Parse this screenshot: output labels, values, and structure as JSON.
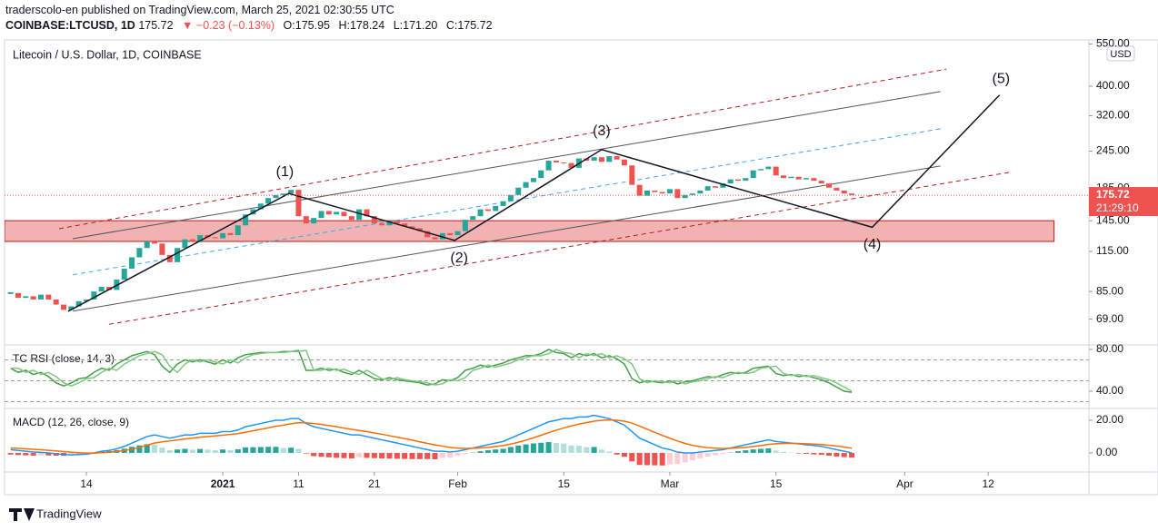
{
  "header": {
    "publisher": "traderscolo-en published on TradingView.com, March 25, 2021 02:30:55 UTC",
    "symbol": "COINBASE:LTCUSD, 1D",
    "last": "175.72",
    "change": "▼ −0.23 (−0.13%)",
    "ohlc": [
      "O:175.95",
      "H:178.24",
      "L:171.20",
      "C:175.72"
    ],
    "footer": "TradingView"
  },
  "chart_data": {
    "type": "candlestick",
    "title": "Litecoin / U.S. Dollar, 1D, COINBASE",
    "currency": "USD",
    "log_scale": true,
    "grid": false,
    "up_color": "#26a69a",
    "down_color": "#ef5350",
    "x": [
      0,
      1,
      2,
      3,
      4,
      5,
      6,
      7,
      8,
      9,
      10,
      11,
      12,
      13,
      14,
      15,
      16,
      17,
      18,
      19,
      20,
      21,
      22,
      23,
      24,
      25,
      26,
      27,
      28,
      29,
      30,
      31,
      32,
      33,
      34,
      35,
      36,
      37,
      38,
      39,
      40,
      41,
      42,
      43,
      44,
      45,
      46,
      47,
      48,
      49,
      50,
      51,
      52,
      53,
      54,
      55,
      56,
      57,
      58,
      59,
      60,
      61,
      62,
      63,
      64,
      65,
      66,
      67,
      68,
      69,
      70,
      71,
      72,
      73,
      74,
      75,
      76,
      77,
      78,
      79,
      80,
      81,
      82,
      83,
      84,
      85,
      86,
      87,
      88,
      89,
      90,
      91,
      92,
      93,
      94,
      95,
      96,
      97,
      98,
      99,
      100,
      101,
      102,
      103,
      104,
      105,
      106,
      107,
      108,
      109,
      110,
      111
    ],
    "close": [
      84,
      81,
      82,
      80,
      83,
      80,
      77,
      74,
      76,
      79,
      80,
      85,
      88,
      86,
      93,
      101,
      110,
      118,
      124,
      122,
      112,
      106,
      118,
      126,
      124,
      130,
      128,
      127,
      132,
      130,
      140,
      152,
      158,
      165,
      172,
      176,
      178,
      183,
      150,
      142,
      148,
      156,
      152,
      155,
      150,
      146,
      158,
      150,
      142,
      140,
      144,
      142,
      139,
      137,
      134,
      128,
      126,
      132,
      130,
      134,
      146,
      150,
      158,
      156,
      162,
      168,
      176,
      186,
      194,
      200,
      212,
      228,
      225,
      224,
      216,
      232,
      228,
      234,
      226,
      236,
      230,
      220,
      190,
      175,
      182,
      180,
      178,
      184,
      172,
      176,
      178,
      182,
      188,
      186,
      192,
      198,
      196,
      200,
      212,
      214,
      218,
      204,
      200,
      202,
      198,
      200,
      196,
      192,
      186,
      182,
      178,
      175.72
    ],
    "last_price": 175.72,
    "countdown": "21:29:10",
    "xlim": [
      -0.8,
      142.3
    ],
    "xticks": [
      {
        "value": 10,
        "label": "14"
      },
      {
        "value": 28,
        "label": "2021"
      },
      {
        "value": 38,
        "label": "11"
      },
      {
        "value": 48,
        "label": "21"
      },
      {
        "value": 59,
        "label": "Feb"
      },
      {
        "value": 73,
        "label": "15"
      },
      {
        "value": 87,
        "label": "Mar"
      },
      {
        "value": 101,
        "label": "15"
      },
      {
        "value": 118,
        "label": "Apr"
      },
      {
        "value": 129,
        "label": "12"
      }
    ],
    "ylim": [
      56.8,
      567
    ],
    "yticks": [
      {
        "value": 550,
        "label": "550.00"
      },
      {
        "value": 400,
        "label": "400.00"
      },
      {
        "value": 320,
        "label": "320.00"
      },
      {
        "value": 245,
        "label": "245.00"
      },
      {
        "value": 185,
        "label": "185.00"
      },
      {
        "value": 145,
        "label": "145.00"
      },
      {
        "value": 115,
        "label": "115.00"
      },
      {
        "value": 85,
        "label": "85.00"
      },
      {
        "value": 69,
        "label": "69.00"
      }
    ],
    "zone": {
      "x": [
        -0.8,
        137.7
      ],
      "y": [
        124,
        145
      ],
      "color": "#e57373"
    },
    "channels": [
      {
        "color": "#555555",
        "dashed": false,
        "x": [
          8.2,
          122.7
        ],
        "y": [
          126.6,
          384
        ]
      },
      {
        "color": "#555555",
        "dashed": false,
        "x": [
          8.2,
          122.7
        ],
        "y": [
          73.3,
          219
        ]
      },
      {
        "color": "#42a5f5",
        "dashed": true,
        "x": [
          8.2,
          122.7
        ],
        "y": [
          96.4,
          290
        ]
      },
      {
        "color": "#b71c1c",
        "dashed": true,
        "x": [
          6.4,
          123.5
        ],
        "y": [
          136.5,
          455
        ]
      },
      {
        "color": "#b71c1c",
        "dashed": true,
        "x": [
          13,
          131.9
        ],
        "y": [
          66.4,
          209
        ]
      }
    ],
    "wave_path": {
      "x": [
        7.6,
        36.7,
        58.6,
        78,
        113.7,
        130.5
      ],
      "y": [
        73.2,
        178,
        125,
        248,
        138,
        374
      ]
    },
    "wave_labels": [
      {
        "text": "(1)",
        "x": 36.2,
        "y": 209
      },
      {
        "text": "(2)",
        "x": 59.2,
        "y": 109
      },
      {
        "text": "(3)",
        "x": 78,
        "y": 284
      },
      {
        "text": "(4)",
        "x": 113.7,
        "y": 121
      },
      {
        "text": "(5)",
        "x": 130.7,
        "y": 422
      }
    ],
    "indicators": [
      {
        "name": "TC RSI (close, 14, 3)",
        "ylim": [
          23.5,
          84.3
        ],
        "yticks": [
          {
            "value": 80,
            "label": "80.00"
          },
          {
            "value": 40,
            "label": "40.00"
          }
        ],
        "levels": [
          70,
          50,
          30
        ],
        "series": [
          {
            "color": "#43a047",
            "values": [
              62,
              58,
              60,
              56,
              58,
              54,
              48,
              45,
              48,
              52,
              53,
              58,
              62,
              60,
              66,
              70,
              74,
              76,
              78,
              75,
              64,
              58,
              66,
              70,
              68,
              70,
              68,
              66,
              70,
              67,
              72,
              75,
              76,
              77,
              77,
              77,
              78,
              78,
              79,
              60,
              60,
              62,
              60,
              61,
              58,
              56,
              60,
              56,
              52,
              51,
              53,
              51,
              50,
              49,
              48,
              46,
              47,
              51,
              50,
              53,
              60,
              62,
              65,
              63,
              65,
              67,
              70,
              72,
              74,
              74,
              76,
              80,
              77,
              76,
              72,
              76,
              74,
              76,
              72,
              74,
              71,
              66,
              52,
              48,
              50,
              49,
              48,
              50,
              47,
              49,
              50,
              52,
              54,
              53,
              56,
              58,
              57,
              58,
              62,
              63,
              64,
              57,
              55,
              56,
              54,
              55,
              53,
              51,
              48,
              44,
              40,
              39
            ]
          },
          {
            "color": "#81c784",
            "values": [
              62,
              62,
              58,
              60,
              56,
              58,
              54,
              48,
              45,
              48,
              52,
              53,
              58,
              62,
              60,
              66,
              70,
              74,
              76,
              78,
              75,
              64,
              58,
              66,
              70,
              68,
              70,
              68,
              66,
              70,
              67,
              72,
              75,
              76,
              77,
              77,
              77,
              78,
              78,
              79,
              60,
              60,
              62,
              60,
              61,
              58,
              56,
              60,
              56,
              52,
              51,
              53,
              51,
              50,
              49,
              48,
              46,
              47,
              51,
              50,
              53,
              60,
              62,
              65,
              63,
              65,
              67,
              70,
              72,
              74,
              74,
              76,
              80,
              77,
              76,
              72,
              76,
              74,
              76,
              72,
              74,
              71,
              66,
              52,
              48,
              50,
              49,
              48,
              50,
              47,
              49,
              50,
              52,
              54,
              53,
              56,
              58,
              57,
              58,
              62,
              63,
              64,
              57,
              55,
              56,
              54,
              55,
              53,
              51,
              48,
              44,
              40
            ]
          }
        ]
      },
      {
        "name": "MACD (12, 26, close, 9)",
        "ylim": [
          -11.7,
          27.2
        ],
        "yticks": [
          {
            "value": 20,
            "label": "20.00"
          },
          {
            "value": 0,
            "label": "0.00"
          }
        ],
        "histogram": {
          "up_color": "#26a69a",
          "up_fade": "#b2dfdb",
          "down_color": "#ef5350",
          "down_fade": "#ffcdd2",
          "values": [
            -1,
            -1.3,
            -1.5,
            -1.7,
            -1.6,
            -1.6,
            -1.7,
            -1.8,
            -1.6,
            -1.1,
            -0.7,
            0.1,
            0.9,
            1.1,
            1.7,
            2.6,
            3.7,
            4.6,
            5.3,
            5,
            3.2,
            1.7,
            2.1,
            2.5,
            2,
            2.4,
            2,
            1.6,
            2.1,
            1.7,
            2.2,
            3.4,
            3.5,
            3.6,
            3.7,
            3.7,
            3,
            3.2,
            2.5,
            -0.4,
            -2,
            -2.4,
            -2.7,
            -3,
            -3.2,
            -3.4,
            -2.7,
            -3,
            -3.2,
            -3.4,
            -3.5,
            -3.6,
            -3.7,
            -3.8,
            -3.8,
            -3.8,
            -3.9,
            -3.1,
            -2.9,
            -1.9,
            -0.7,
            0.2,
            1,
            1.6,
            2.1,
            2.5,
            3.6,
            4.5,
            5.2,
            5.8,
            6.2,
            6.6,
            6.1,
            5.7,
            4.5,
            4.4,
            3.5,
            3.6,
            2,
            0.8,
            -1,
            -2.4,
            -5.2,
            -7.4,
            -7.5,
            -7.6,
            -7.7,
            -7,
            -6.8,
            -5.8,
            -4.6,
            -3.3,
            -2.2,
            -1.4,
            -0.7,
            0.2,
            1,
            1.6,
            2.1,
            2.5,
            2.8,
            1.4,
            0.7,
            0.2,
            -0.3,
            -0.6,
            -0.9,
            -1.1,
            -1.7,
            -2.2,
            -2.6,
            -2.9
          ]
        },
        "series": [
          {
            "color": "#2196f3",
            "values": [
              2,
              1.5,
              1,
              0.5,
              0.3,
              0,
              -0.5,
              -1,
              -1.2,
              -1,
              -0.8,
              0,
              1,
              1.5,
              2.5,
              4,
              6,
              8,
              10,
              11,
              10,
              9,
              10,
              11,
              11,
              12,
              12,
              12,
              13,
              13,
              14,
              16,
              17,
              18,
              19,
              20,
              20,
              21,
              21,
              18,
              16,
              15,
              14,
              13,
              12,
              11,
              11,
              10,
              9,
              8,
              7,
              6,
              5,
              4,
              3,
              2,
              1,
              1,
              0.5,
              1,
              2,
              3,
              4,
              5,
              6,
              7,
              9,
              11,
              13,
              15,
              17,
              19,
              20,
              21,
              21,
              22,
              22,
              23,
              22,
              21,
              19,
              17,
              13,
              9,
              7,
              5,
              3,
              2,
              0.5,
              0,
              0,
              0.5,
              1,
              1.5,
              2,
              3,
              4,
              5,
              6,
              7,
              8,
              7,
              6.5,
              6,
              5.5,
              5,
              4.5,
              4,
              3,
              2,
              1,
              0
            ]
          },
          {
            "color": "#ff6d00",
            "values": [
              3,
              2.8,
              2.5,
              2.2,
              1.9,
              1.6,
              1.2,
              0.8,
              0.4,
              0.1,
              -0.1,
              -0.1,
              0.1,
              0.4,
              0.8,
              1.4,
              2.3,
              3.4,
              4.7,
              6,
              6.8,
              7.3,
              7.9,
              8.5,
              9,
              9.6,
              10,
              10.4,
              10.9,
              11.3,
              11.8,
              12.6,
              13.5,
              14.4,
              15.3,
              16.3,
              17,
              17.8,
              18.5,
              18.4,
              18,
              17.4,
              16.7,
              16,
              15.2,
              14.4,
              13.7,
              13,
              12.2,
              11.4,
              10.5,
              9.6,
              8.7,
              7.8,
              6.8,
              5.8,
              4.9,
              4.1,
              3.4,
              2.9,
              2.7,
              2.8,
              3,
              3.4,
              3.9,
              4.5,
              5.4,
              6.5,
              7.8,
              9.2,
              10.8,
              12.4,
              13.9,
              15.3,
              16.5,
              17.6,
              18.5,
              19.4,
              20,
              20.2,
              20,
              19.4,
              18.2,
              16.4,
              14.5,
              12.6,
              10.7,
              9,
              7.3,
              5.8,
              4.6,
              3.8,
              3.2,
              2.9,
              2.7,
              2.8,
              3,
              3.4,
              3.9,
              4.5,
              5.2,
              5.6,
              5.8,
              5.8,
              5.8,
              5.6,
              5.4,
              5.1,
              4.7,
              4.2,
              3.6,
              2.9
            ]
          }
        ]
      }
    ]
  }
}
